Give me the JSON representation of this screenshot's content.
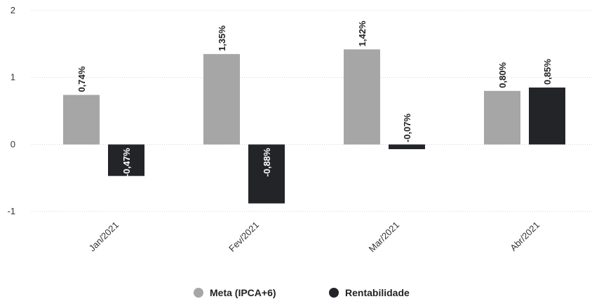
{
  "chart_data": {
    "type": "bar",
    "categories": [
      "Jan/2021",
      "Fev/2021",
      "Mar/2021",
      "Abr/2021"
    ],
    "series": [
      {
        "name": "Meta (IPCA+6)",
        "color": "#a6a6a6",
        "values": [
          0.74,
          1.35,
          1.42,
          0.8
        ],
        "labels": [
          "0,74%",
          "1,35%",
          "1,42%",
          "0,80%"
        ]
      },
      {
        "name": "Rentabilidade",
        "color": "#222428",
        "values": [
          -0.47,
          -0.88,
          -0.07,
          0.85
        ],
        "labels": [
          "-0,47%",
          "-0,88%",
          "-0,07%",
          "0,85%"
        ]
      }
    ],
    "ylim": [
      -1,
      2
    ],
    "yticks": [
      2,
      1,
      0,
      -1
    ],
    "ytick_labels": [
      "2",
      "1",
      "0",
      "-1"
    ],
    "grid": true,
    "legend_position": "bottom-center",
    "title": "",
    "xlabel": "",
    "ylabel": ""
  }
}
